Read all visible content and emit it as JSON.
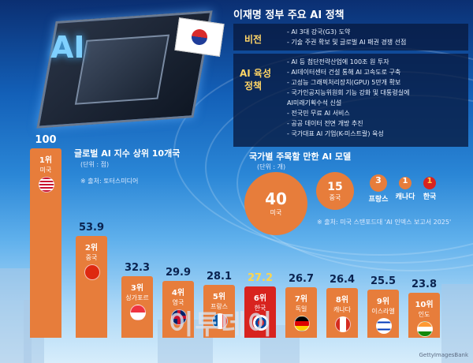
{
  "panel": {
    "title": "이재명 정부 주요 AI 정책",
    "vision_label": "비전",
    "vision_lines": [
      "- AI 3대 강국(G3) 도약",
      "- 기술 주권 확보 및 글로벌 AI 패권 경쟁 선점"
    ],
    "policy_label_1": "AI 육성",
    "policy_label_2": "정책",
    "policy_lines": [
      "- AI 등 첨단전략산업에 100조 원 투자",
      "- AI데이터센터 건설 통해 AI 고속도로 구축",
      "- 고성능 그래픽처리장치(GPU) 5만개 확보",
      "- 국가인공지능위원회 기능 강화 및 대통령실에",
      "  AI미래기획수석 신설",
      "- 전국민 무료 AI 서비스",
      "- 공공 데이터 전면 개방 추진",
      "- 국가대표 AI 기업(K-미스트랄) 육성"
    ]
  },
  "index_chart": {
    "title": "글로벌 AI 지수 상위 10개국",
    "unit": "(단위 : 점)",
    "source": "※ 출처: 토터스미디어"
  },
  "model_chart": {
    "title": "국가별 주목할 만한 AI 모델",
    "unit": "(단위 : 개)",
    "source": "※ 출처: 미국 스탠포드대 'AI 인덱스 보고서 2025'"
  },
  "watermark": "이투데이",
  "credit": "GettyImagesBank",
  "colors": {
    "bar": "#e77d3b",
    "highlight": "#d8231f",
    "highlight_value": "#ffd54a"
  },
  "chart_data": [
    {
      "type": "bar",
      "title": "글로벌 AI 지수 상위 10개국",
      "ylabel": "(단위 : 점)",
      "ylim": [
        0,
        100
      ],
      "categories": [
        "미국",
        "중국",
        "싱가포르",
        "영국",
        "프랑스",
        "한국",
        "독일",
        "캐나다",
        "이스라엘",
        "인도"
      ],
      "ranks": [
        "1위",
        "2위",
        "3위",
        "4위",
        "5위",
        "6위",
        "7위",
        "8위",
        "9위",
        "10위"
      ],
      "values": [
        100,
        53.9,
        32.3,
        29.9,
        28.1,
        27.2,
        26.7,
        26.4,
        25.5,
        23.8
      ],
      "value_labels": [
        "100",
        "53.9",
        "32.3",
        "29.9",
        "28.1",
        "27.2",
        "26.7",
        "26.4",
        "25.5",
        "23.8"
      ],
      "flags": [
        "us-flag-icon",
        "cn-flag-icon",
        "sg-flag-icon",
        "uk-flag-icon",
        "fr-flag-icon",
        "kr-flag-icon",
        "de-flag-icon",
        "ca-flag-icon",
        "il-flag-icon",
        "in-flag-icon"
      ],
      "highlight": "한국"
    },
    {
      "type": "bubble",
      "title": "국가별 주목할 만한 AI 모델",
      "ylabel": "(단위 : 개)",
      "categories": [
        "미국",
        "중국",
        "프랑스",
        "캐나다",
        "한국"
      ],
      "values": [
        40,
        15,
        3,
        1,
        1
      ],
      "value_labels": [
        "40",
        "15",
        "3",
        "1",
        "1"
      ],
      "highlight": "한국"
    }
  ]
}
